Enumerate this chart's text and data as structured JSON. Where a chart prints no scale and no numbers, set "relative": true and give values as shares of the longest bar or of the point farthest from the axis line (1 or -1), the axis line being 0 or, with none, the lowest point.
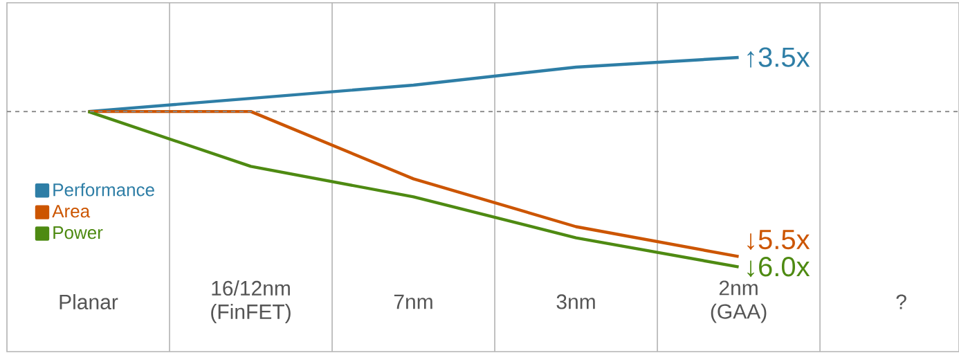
{
  "chart_data": {
    "type": "line",
    "relative": true,
    "categories": [
      "Planar",
      "16/12nm (FinFET)",
      "7nm",
      "3nm",
      "2nm (GAA)",
      "?"
    ],
    "series": [
      {
        "name": "Performance",
        "color": "#2e7ea6",
        "values": [
          0,
          0.085,
          0.17,
          0.286,
          0.348,
          null
        ]
      },
      {
        "name": "Area",
        "color": "#cc5500",
        "values": [
          0,
          0,
          -0.433,
          -0.741,
          -0.933,
          null
        ]
      },
      {
        "name": "Power",
        "color": "#4e8a12",
        "values": [
          0,
          -0.353,
          -0.549,
          -0.8125,
          -1,
          null
        ]
      }
    ],
    "ref_lines": [
      {
        "axis": "y",
        "value": 0,
        "color": "#888888",
        "line_style": "dashed"
      }
    ],
    "annotations": [
      "↑3.5x",
      "↓5.5x",
      "↓6.0x"
    ],
    "grid": "x",
    "legend": "left",
    "marker": "none",
    "line_style": "solid"
  }
}
